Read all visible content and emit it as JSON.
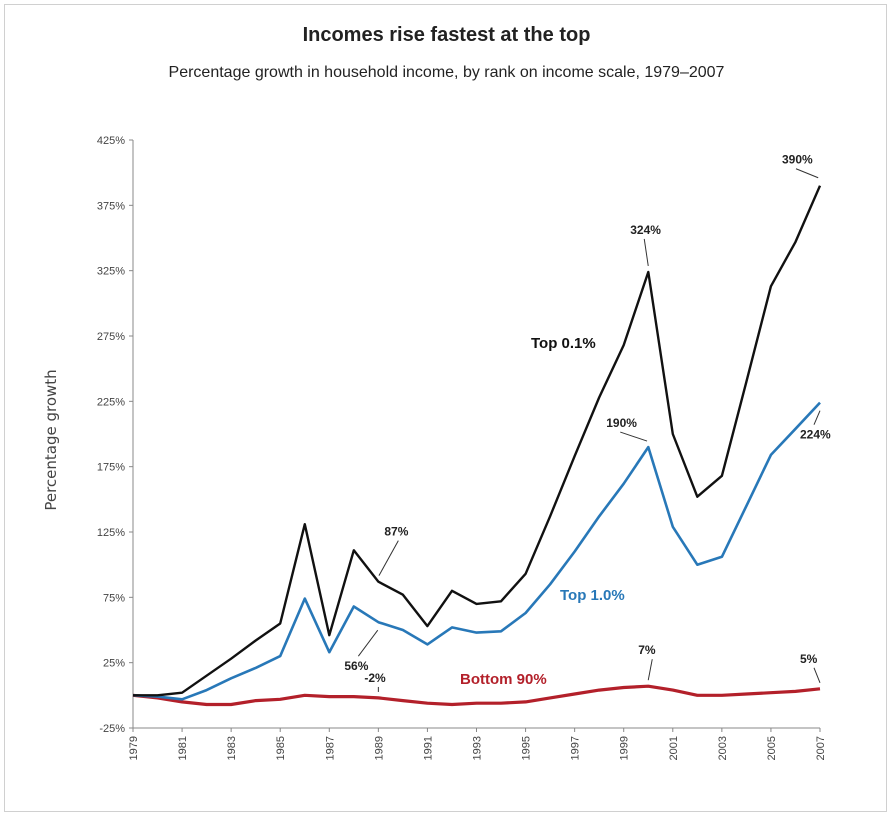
{
  "chart_data": {
    "type": "line",
    "title": "Incomes rise fastest at the top",
    "subtitle": "Percentage growth in household income, by rank on income scale, 1979–2007",
    "ylabel": "Percentage growth",
    "xlabel": "",
    "ylim": [
      -25,
      425
    ],
    "yticks": [
      -25,
      25,
      75,
      125,
      175,
      225,
      275,
      325,
      375,
      425
    ],
    "ytick_labels": [
      "-25%",
      "25%",
      "75%",
      "125%",
      "175%",
      "225%",
      "275%",
      "325%",
      "375%",
      "425%"
    ],
    "xlim": [
      1979,
      2007
    ],
    "xticks": [
      "1979",
      "1981",
      "1983",
      "1985",
      "1987",
      "1989",
      "1991",
      "1993",
      "1995",
      "1997",
      "1999",
      "2001",
      "2003",
      "2005",
      "2007"
    ],
    "x": [
      1979,
      1980,
      1981,
      1982,
      1983,
      1984,
      1985,
      1986,
      1987,
      1988,
      1989,
      1990,
      1991,
      1992,
      1993,
      1994,
      1995,
      1996,
      1997,
      1998,
      1999,
      2000,
      2001,
      2002,
      2003,
      2004,
      2005,
      2006,
      2007
    ],
    "series": [
      {
        "name": "Top 0.1%",
        "color": "#111111",
        "values": [
          0,
          0,
          2,
          15,
          28,
          42,
          55,
          131,
          46,
          111,
          87,
          77,
          53,
          80,
          70,
          72,
          93,
          137,
          183,
          228,
          268,
          324,
          200,
          152,
          168,
          240,
          313,
          347,
          390
        ]
      },
      {
        "name": "Top 1.0%",
        "color": "#2878b8",
        "values": [
          0,
          -1,
          -3,
          4,
          13,
          21,
          30,
          74,
          33,
          68,
          56,
          50,
          39,
          52,
          48,
          49,
          63,
          85,
          110,
          137,
          162,
          190,
          129,
          100,
          106,
          145,
          184,
          204,
          224
        ]
      },
      {
        "name": "Bottom 90%",
        "color": "#b3202a",
        "values": [
          0,
          -2,
          -5,
          -7,
          -7,
          -4,
          -3,
          0,
          -1,
          -1,
          -2,
          -4,
          -6,
          -7,
          -6,
          -6,
          -5,
          -2,
          1,
          4,
          6,
          7,
          4,
          0,
          0,
          1,
          2,
          3,
          5
        ]
      }
    ],
    "annotations": [
      {
        "text": "390%",
        "x": 2007,
        "y": 390,
        "series": "Top 0.1%"
      },
      {
        "text": "324%",
        "x": 2000,
        "y": 324,
        "series": "Top 0.1%"
      },
      {
        "text": "87%",
        "x": 1989,
        "y": 87,
        "series": "Top 0.1%"
      },
      {
        "text": "190%",
        "x": 2000,
        "y": 190,
        "series": "Top 1.0%"
      },
      {
        "text": "224%",
        "x": 2007,
        "y": 224,
        "series": "Top 1.0%"
      },
      {
        "text": "56%",
        "x": 1989,
        "y": 56,
        "series": "Top 1.0%"
      },
      {
        "text": "-2%",
        "x": 1989,
        "y": -2,
        "series": "Bottom 90%"
      },
      {
        "text": "7%",
        "x": 2000,
        "y": 7,
        "series": "Bottom 90%"
      },
      {
        "text": "5%",
        "x": 2007,
        "y": 5,
        "series": "Bottom 90%"
      }
    ],
    "grid": false,
    "legend": "inline labels"
  }
}
